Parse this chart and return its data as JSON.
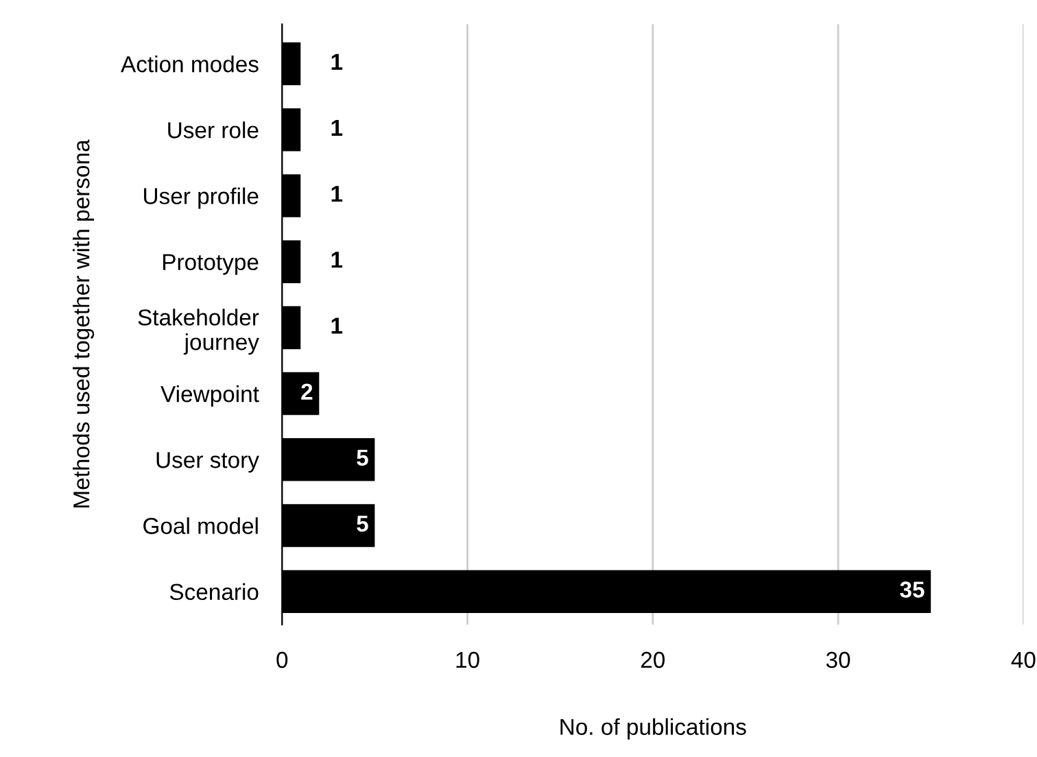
{
  "chart_data": {
    "type": "bar",
    "orientation": "horizontal",
    "xlabel": "No. of publications",
    "ylabel": "Methods used together with persona",
    "categories": [
      "Action modes",
      "User role",
      "User profile",
      "Prototype",
      "Stakeholder\njourney",
      "Viewpoint",
      "User story",
      "Goal model",
      "Scenario"
    ],
    "values": [
      1,
      1,
      1,
      1,
      1,
      2,
      5,
      5,
      35
    ],
    "color": "#000000",
    "xlim": [
      0,
      40
    ],
    "xticks": [
      0,
      10,
      20,
      30,
      40
    ],
    "grid": "x",
    "data_labels": true
  }
}
